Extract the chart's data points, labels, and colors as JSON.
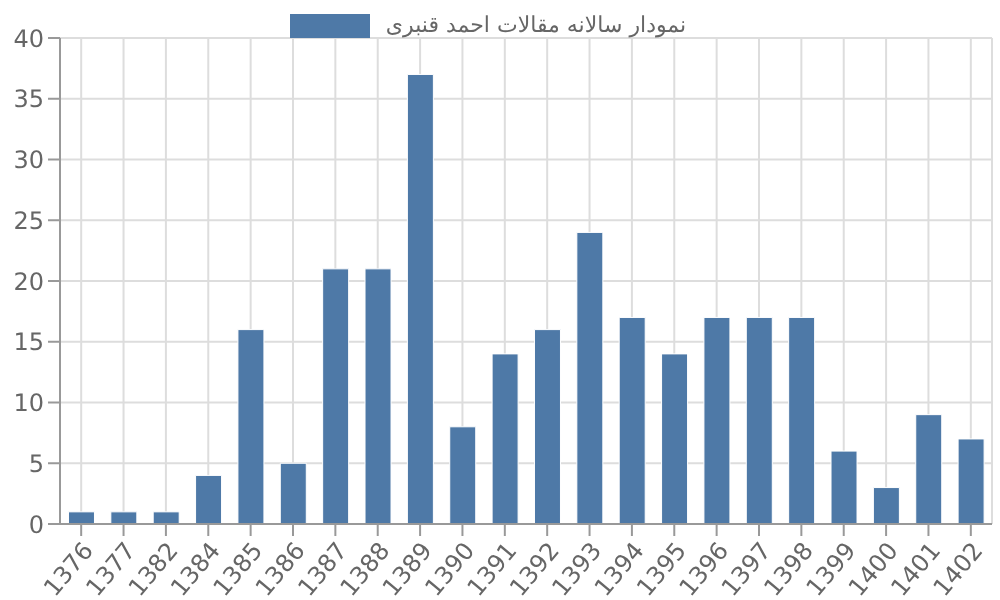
{
  "chart_data": {
    "type": "bar",
    "categories": [
      "1376",
      "1377",
      "1382",
      "1384",
      "1385",
      "1386",
      "1387",
      "1388",
      "1389",
      "1390",
      "1391",
      "1392",
      "1393",
      "1394",
      "1395",
      "1396",
      "1397",
      "1398",
      "1399",
      "1400",
      "1401",
      "1402"
    ],
    "series": [
      {
        "name": "نمودار سالانه مقالات احمد قنبری",
        "color": "#4e79a7",
        "values": [
          1,
          1,
          1,
          4,
          16,
          5,
          21,
          21,
          37,
          8,
          14,
          16,
          24,
          17,
          14,
          17,
          17,
          17,
          6,
          3,
          9,
          7
        ]
      }
    ],
    "ylim": [
      0,
      40
    ],
    "yticks": [
      0,
      5,
      10,
      15,
      20,
      25,
      30,
      35,
      40
    ],
    "grid": true,
    "legend": "top"
  }
}
